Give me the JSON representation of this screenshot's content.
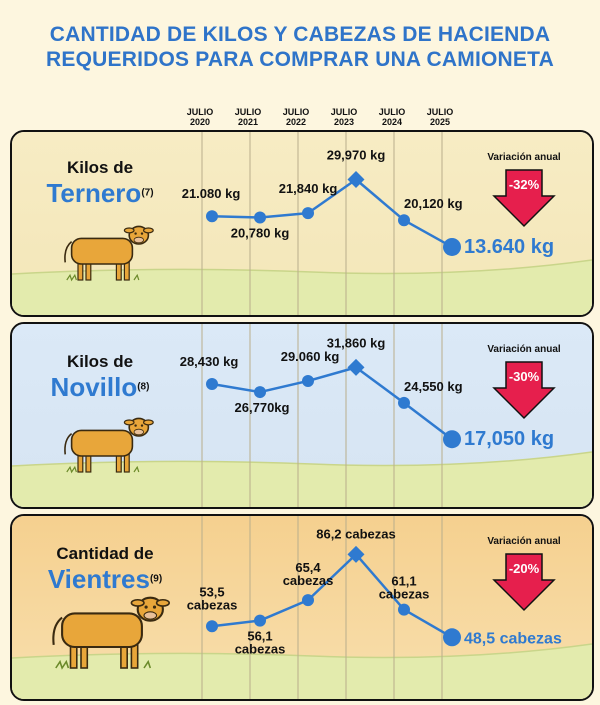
{
  "title_line1": "CANTIDAD DE KILOS Y CABEZAS DE HACIENDA",
  "title_line2": "REQUERIDOS PARA COMPRAR UNA CAMIONETA",
  "years": [
    {
      "top": "JULIO",
      "bottom": "2020"
    },
    {
      "top": "JULIO",
      "bottom": "2021"
    },
    {
      "top": "JULIO",
      "bottom": "2022"
    },
    {
      "top": "JULIO",
      "bottom": "2023"
    },
    {
      "top": "JULIO",
      "bottom": "2024"
    },
    {
      "top": "JULIO",
      "bottom": "2025"
    }
  ],
  "colors": {
    "title": "#2f74c9",
    "line": "#2f7ad0",
    "arrow": "#e61f4d",
    "panel_top_beige": "#f7ecc4",
    "panel_top_blue": "#dbe9f7",
    "panel_top_orange": "#f5d08f",
    "grass": "#e3ebad",
    "cow": "#e8a63a"
  },
  "chart_data": [
    {
      "type": "line",
      "label_small": "Kilos de",
      "label_big": "Ternero",
      "note": "(7)",
      "x": [
        "2020",
        "2021",
        "2022",
        "2023",
        "2024",
        "2025"
      ],
      "values": [
        21080,
        20780,
        21840,
        29970,
        20120,
        13640
      ],
      "data_labels": [
        "21.080 kg",
        "20,780 kg",
        "21,840 kg",
        "29,970 kg",
        "20,120 kg",
        "13.640 kg"
      ],
      "variation_label": "Variación anual",
      "variation": "-32%"
    },
    {
      "type": "line",
      "label_small": "Kilos de",
      "label_big": "Novillo",
      "note": "(8)",
      "x": [
        "2020",
        "2021",
        "2022",
        "2023",
        "2024",
        "2025"
      ],
      "values": [
        28430,
        26770,
        29060,
        31860,
        24550,
        17050
      ],
      "data_labels": [
        "28,430 kg",
        "26,770kg",
        "29.060 kg",
        "31,860 kg",
        "24,550 kg",
        "17,050 kg"
      ],
      "variation_label": "Variación anual",
      "variation": "-30%"
    },
    {
      "type": "line",
      "label_small": "Cantidad de",
      "label_big": "Vientres",
      "note": "(9)",
      "x": [
        "2020",
        "2021",
        "2022",
        "2023",
        "2024",
        "2025"
      ],
      "values": [
        53.5,
        56.1,
        65.4,
        86.2,
        61.1,
        48.5
      ],
      "data_labels": [
        [
          "53,5",
          "cabezas"
        ],
        [
          "56,1",
          "cabezas"
        ],
        [
          "65,4",
          "cabezas"
        ],
        [
          "86,2 cabezas"
        ],
        [
          "61,1",
          "cabezas"
        ],
        [
          "48,5 cabezas"
        ]
      ],
      "variation_label": "Variación anual",
      "variation": "-20%"
    }
  ]
}
